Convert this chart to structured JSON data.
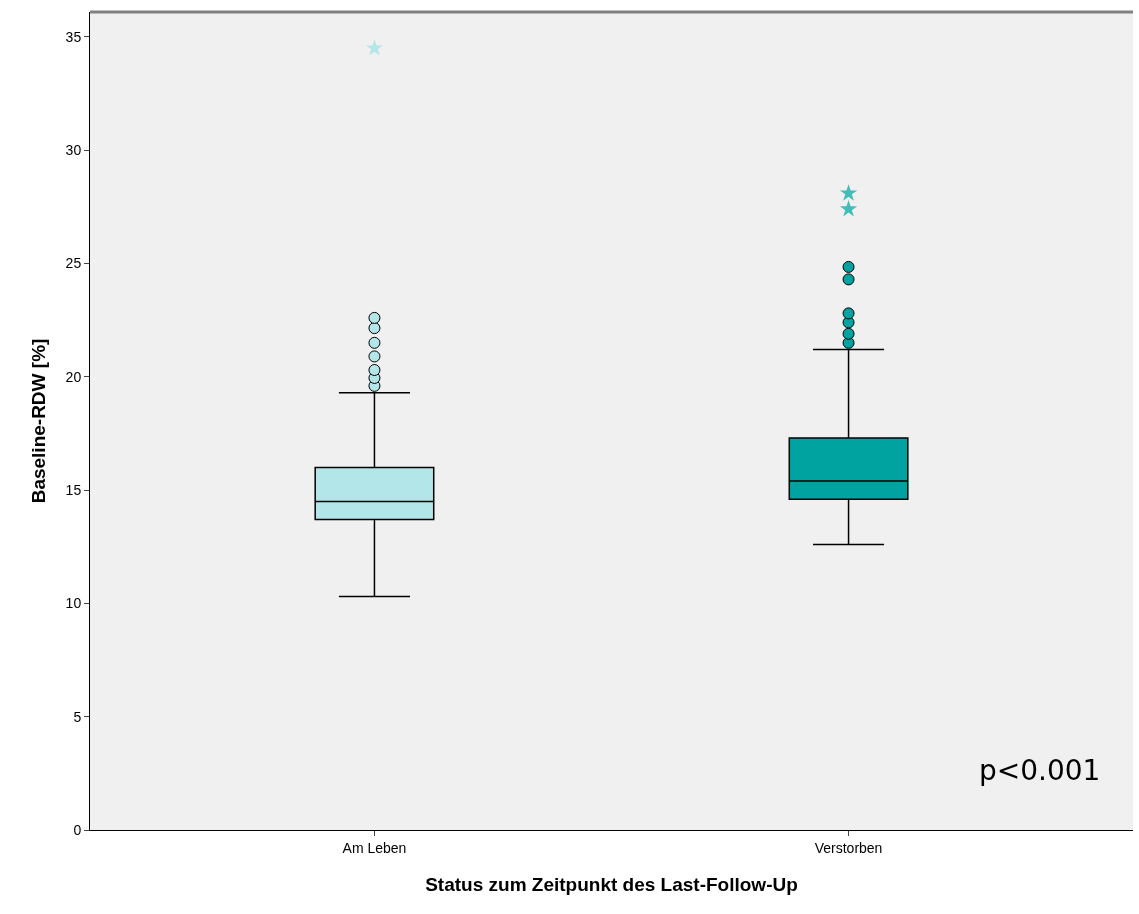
{
  "chart_data": {
    "type": "box",
    "xlabel": "Status zum Zeitpunkt des Last-Follow-Up",
    "ylabel": "Baseline-RDW [%]",
    "categories": [
      "Am Leben",
      "Verstorben"
    ],
    "colors": [
      "#b3e6e8",
      "#00a3a0"
    ],
    "boxes": [
      {
        "low": 10.3,
        "q1": 13.7,
        "median": 14.5,
        "q3": 16.0,
        "high": 19.3,
        "outliers": [
          19.6,
          19.95,
          20.3,
          20.9,
          21.5,
          22.15,
          22.6
        ]
      },
      {
        "low": 12.6,
        "q1": 14.6,
        "median": 15.4,
        "q3": 17.3,
        "high": 21.2,
        "outliers": [
          21.5,
          21.9,
          22.4,
          22.8,
          24.3,
          24.85
        ]
      }
    ],
    "series": [
      {
        "type": "scatter",
        "marker": "star",
        "x": [
          "Am Leben",
          "Verstorben",
          "Verstorben"
        ],
        "values": [
          34.5,
          27.4,
          28.1
        ],
        "colors": [
          "#b3e6e8",
          "#40bdb9",
          "#40bdb9"
        ]
      }
    ],
    "ylim": [
      0,
      36.1
    ],
    "yticks": [
      0,
      5,
      10,
      15,
      20,
      25,
      30,
      35
    ],
    "annotations": [
      "p<0.001"
    ]
  }
}
